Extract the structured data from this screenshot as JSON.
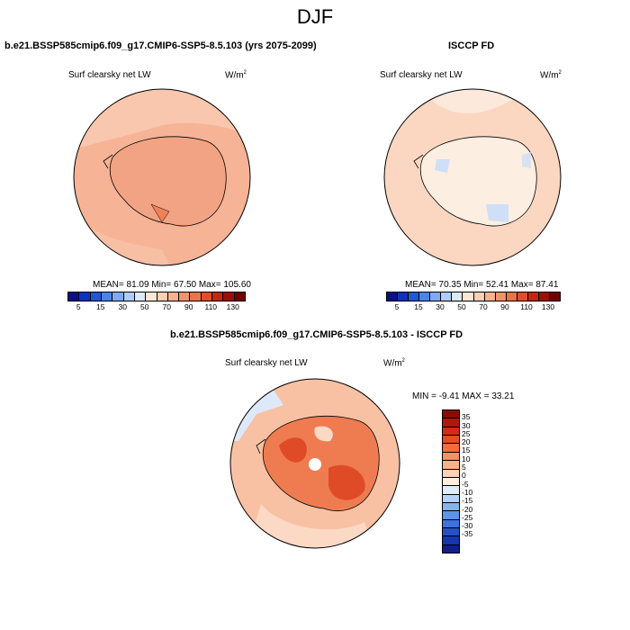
{
  "title": "DJF",
  "panels": [
    {
      "heading": "b.e21.BSSP585cmip6.f09_g17.CMIP6-SSP5-8.5.103 (yrs 2075-2099)",
      "variable": "Surf clearsky net LW",
      "units_base": "W/m",
      "units_exp": "2",
      "stats": "MEAN=  81.09  Min=  67.50  Max= 105.60"
    },
    {
      "heading": "ISCCP FD",
      "variable": "Surf clearsky net LW",
      "units_base": "W/m",
      "units_exp": "2",
      "stats": "MEAN=  70.35  Min=  52.41  Max=  87.41"
    },
    {
      "heading": "b.e21.BSSP585cmip6.f09_g17.CMIP6-SSP5-8.5.103 - ISCCP FD",
      "variable": "Surf clearsky net LW",
      "units_base": "W/m",
      "units_exp": "2",
      "stats": "MIN =  -9.41 MAX =  33.21"
    }
  ],
  "colorbar_abs": {
    "labels": [
      "5",
      "15",
      "30",
      "50",
      "70",
      "90",
      "110",
      "130"
    ],
    "colors": [
      "#08108c",
      "#1030c0",
      "#2255dd",
      "#4a82ee",
      "#7fa9f5",
      "#aecbf9",
      "#dce9fc",
      "#fde6d4",
      "#fbcfb2",
      "#f8b28e",
      "#f5926c",
      "#f07048",
      "#e44b28",
      "#c82410",
      "#a00c06",
      "#730000"
    ]
  },
  "colorbar_diff": {
    "labels": [
      "35",
      "30",
      "25",
      "20",
      "15",
      "10",
      "5",
      "0",
      "-5",
      "-10",
      "-15",
      "-20",
      "-25",
      "-30",
      "-35"
    ],
    "colors": [
      "#8c0a06",
      "#b3160b",
      "#d42c14",
      "#e84a22",
      "#f26c3e",
      "#f6905f",
      "#f9b287",
      "#fbd2b3",
      "#fdeee0",
      "#dfecfb",
      "#b6d2f7",
      "#86b2f0",
      "#5e93e8",
      "#3e72dc",
      "#2550c8",
      "#1636ad",
      "#0d1f8c"
    ]
  },
  "map_colors": {
    "ocean_abs_model": "#f6b396",
    "ocean_abs_model_light": "#f9c7ad",
    "land_abs_model": "#f1a383",
    "ocean_abs_obs": "#fbd7c2",
    "land_abs_obs": "#fdeee2",
    "blue_patch": "#cfdff7",
    "diff_ocean": "#f8c1a4",
    "diff_land": "#ee7c50",
    "diff_dark": "#df4b26",
    "diff_light": "#fbd9c5",
    "diff_blue": "#dde9f9"
  }
}
